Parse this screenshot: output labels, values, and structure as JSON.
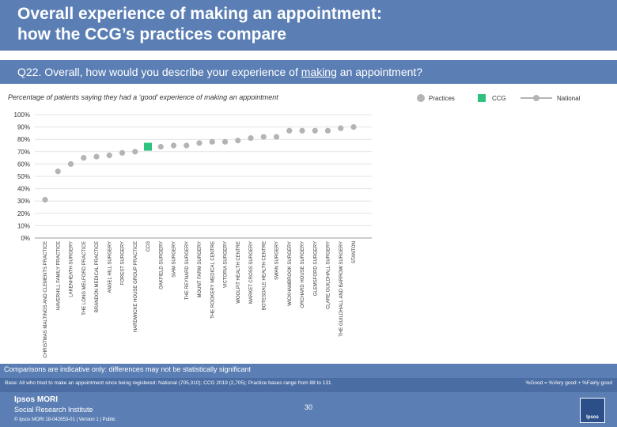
{
  "header": {
    "title_line1": "Overall experience of making an appointment:",
    "title_line2": "how the CCG’s practices compare"
  },
  "question": {
    "prefix": "Q22. Overall, how would you describe your experience of ",
    "underlined": "making",
    "suffix": " an appointment?"
  },
  "subtitle": "Percentage of patients saying they had a ‘good’ experience of making an appointment",
  "legend": {
    "practices": "Practices",
    "ccg": "CCG",
    "national": "National"
  },
  "colors": {
    "header_bg": "#5b7fb4",
    "practice_dot": "#b4b4b4",
    "ccg_marker": "#2ec27e",
    "national_line": "#b4b4b4"
  },
  "chart_data": {
    "type": "scatter",
    "ylim": [
      0,
      100
    ],
    "y_ticks": [
      "0%",
      "10%",
      "20%",
      "30%",
      "40%",
      "50%",
      "60%",
      "70%",
      "80%",
      "90%",
      "100%"
    ],
    "grid": true,
    "categories": [
      "CHRISTMAS MALTINGS AND CLEMENTS PRACTICE",
      "HAVERHILL FAMILY PRACTICE",
      "LAKENHEATH SURGERY",
      "THE LONG MELFORD PRACTICE",
      "BRANDON MEDICAL PRACTICE",
      "ANGEL HILL SURGERY",
      "FOREST SURGERY",
      "HARDWICKE HOUSE GROUP PRACTICE",
      "CCG",
      "OAKFIELD SURGERY",
      "SIAM SURGERY",
      "THE REYNARD SURGERY",
      "MOUNT FARM SURGERY",
      "THE ROOKERY MEDICAL CENTRE",
      "VICTORIA SURGERY",
      "WOOLPIT HEALTH CENTRE",
      "MARKET CROSS SURGERY",
      "BOTESDALE HEALTH CENTRE",
      "SWAN SURGERY",
      "WICKHAMBROOK SURGERY",
      "ORCHARD HOUSE SURGERY",
      "GLEMSFORD SURGERY",
      "CLARE GUILDHALL SURGERY",
      "THE GUILDHALL AND BARROW SURGERY",
      "STANTON"
    ],
    "values": [
      31,
      54,
      60,
      65,
      66,
      67,
      69,
      70,
      74,
      74,
      75,
      75,
      77,
      78,
      78,
      79,
      81,
      82,
      82,
      87,
      87,
      87,
      87,
      89,
      90
    ],
    "ccg_index": 8
  },
  "footer": {
    "note": "Comparisons are indicative only: differences may not be statistically significant",
    "base": "Base: All who tried to make an appointment since being registered: National (705,310); CCG 2019 (2,705); Practice bases range from 88 to 131",
    "good_definition": "%Good = %Very good + %Fairly good",
    "brand_line1": "Ipsos MORI",
    "brand_line2": "Social Research Institute",
    "copyright": "© Ipsos MORI      18-042653-01 | Version 1 | Public",
    "page_number": "30",
    "logo_text": "Ipsos"
  }
}
